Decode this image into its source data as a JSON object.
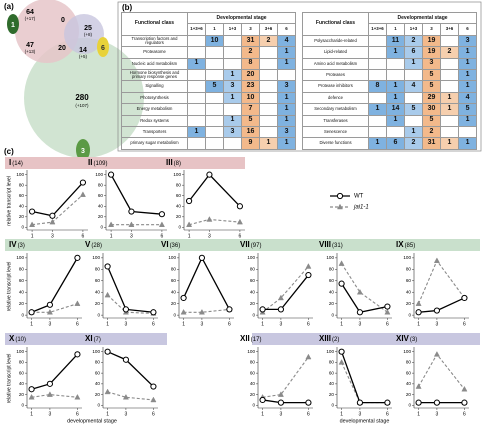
{
  "panel_labels": [
    "(a)",
    "(b)",
    "(c)"
  ],
  "venn": {
    "regions": [
      {
        "count": 64,
        "extra": "(+17)"
      },
      {
        "count": 0
      },
      {
        "count": 25,
        "extra": "(+8)"
      },
      {
        "count": 47,
        "extra": "(+13)"
      },
      {
        "count": 20
      },
      {
        "count": 14,
        "extra": "(+5)"
      },
      {
        "count": 280,
        "extra": "(+107)"
      }
    ],
    "fruit_labels": [
      "1",
      "6",
      "3"
    ]
  },
  "tables": [
    {
      "header_class": "Functional class",
      "header_stage": "Developmental stage",
      "columns": [
        "1+3+6",
        "1",
        "1+3",
        "3",
        "3+6",
        "6"
      ],
      "rows": [
        {
          "class": "Transcription factors and regulators",
          "cells": [
            null,
            10,
            null,
            31,
            2,
            4
          ]
        },
        {
          "class": "Proteasome",
          "cells": [
            null,
            null,
            null,
            2,
            null,
            1
          ]
        },
        {
          "class": "Nucleic acid metabolism",
          "cells": [
            1,
            null,
            null,
            8,
            null,
            1
          ]
        },
        {
          "class": "Hormone biosynthesis and primary response genes",
          "cells": [
            null,
            null,
            1,
            20,
            null,
            null
          ]
        },
        {
          "class": "Signalling",
          "cells": [
            null,
            5,
            3,
            23,
            null,
            3
          ]
        },
        {
          "class": "Photosynthesis",
          "cells": [
            null,
            null,
            1,
            10,
            null,
            1
          ]
        },
        {
          "class": "Energy metabolism",
          "cells": [
            null,
            null,
            null,
            7,
            null,
            1
          ]
        },
        {
          "class": "Redox systems",
          "cells": [
            null,
            null,
            1,
            5,
            null,
            1
          ]
        },
        {
          "class": "Transporters",
          "cells": [
            1,
            null,
            3,
            16,
            null,
            3
          ]
        },
        {
          "class": "primary sugar metabolism",
          "cells": [
            null,
            null,
            null,
            9,
            1,
            1
          ]
        }
      ]
    },
    {
      "header_class": "Functional class",
      "header_stage": "Developmental stage",
      "columns": [
        "1+3+6",
        "1",
        "1+3",
        "3",
        "3+6",
        "6"
      ],
      "rows": [
        {
          "class": "Polysaccharide-related",
          "cells": [
            null,
            11,
            2,
            19,
            null,
            3
          ]
        },
        {
          "class": "Lipid-related",
          "cells": [
            null,
            1,
            6,
            19,
            2,
            1
          ]
        },
        {
          "class": "Amino acid metabolism",
          "cells": [
            null,
            null,
            1,
            3,
            null,
            1
          ]
        },
        {
          "class": "Proteases",
          "cells": [
            null,
            null,
            null,
            5,
            null,
            1
          ]
        },
        {
          "class": "Protease inhibitors",
          "cells": [
            8,
            1,
            4,
            5,
            null,
            1
          ]
        },
        {
          "class": "defence",
          "cells": [
            null,
            1,
            null,
            29,
            1,
            4
          ]
        },
        {
          "class": "Secondary metabolism",
          "cells": [
            1,
            14,
            5,
            30,
            1,
            5
          ]
        },
        {
          "class": "Transferases",
          "cells": [
            null,
            1,
            null,
            5,
            null,
            1
          ]
        },
        {
          "class": "Senescence",
          "cells": [
            null,
            null,
            1,
            2,
            null,
            null
          ]
        },
        {
          "class": "Diverse functions",
          "cells": [
            1,
            6,
            2,
            31,
            1,
            1
          ]
        }
      ]
    }
  ],
  "legend": [
    {
      "name": "WT",
      "color": "#000000",
      "marker": "circle",
      "dashed": false
    },
    {
      "name": "jai1-1",
      "color": "#8a8a8a",
      "marker": "triangle",
      "dashed": true
    }
  ],
  "chart_data": [
    {
      "type": "line",
      "title": "I",
      "count": "(14)",
      "ylabel": "relative transcript level",
      "x": [
        1,
        3,
        6
      ],
      "xlim": [
        0.5,
        6.5
      ],
      "xticks": [
        1,
        3,
        6
      ],
      "ylim": [
        -5,
        105
      ],
      "yticks": [
        0,
        20,
        40,
        60,
        80,
        100
      ],
      "series": [
        {
          "values": [
            30,
            22,
            85
          ]
        },
        {
          "values": [
            5,
            10,
            62
          ]
        }
      ]
    },
    {
      "type": "line",
      "title": "II",
      "count": "(109)",
      "x": [
        1,
        3,
        6
      ],
      "xlim": [
        0.5,
        6.5
      ],
      "xticks": [
        1,
        3,
        6
      ],
      "ylim": [
        -5,
        105
      ],
      "yticks": [
        0,
        20,
        40,
        60,
        80,
        100
      ],
      "series": [
        {
          "values": [
            100,
            30,
            25
          ]
        },
        {
          "values": [
            5,
            5,
            5
          ]
        }
      ]
    },
    {
      "type": "line",
      "title": "III",
      "count": "(8)",
      "x": [
        1,
        3,
        6
      ],
      "xlim": [
        0.5,
        6.5
      ],
      "xticks": [
        1,
        3,
        6
      ],
      "ylim": [
        -5,
        105
      ],
      "yticks": [
        0,
        20,
        40,
        60,
        80,
        100
      ],
      "series": [
        {
          "values": [
            50,
            100,
            40
          ]
        },
        {
          "values": [
            5,
            15,
            10
          ]
        }
      ]
    },
    {
      "type": "line",
      "title": "IV",
      "count": "(3)",
      "ylabel": "relative transcript level",
      "x": [
        1,
        3,
        6
      ],
      "xlim": [
        0.5,
        6.5
      ],
      "xticks": [
        1,
        3,
        6
      ],
      "ylim": [
        -5,
        105
      ],
      "yticks": [
        0,
        20,
        40,
        60,
        80,
        100
      ],
      "series": [
        {
          "values": [
            5,
            18,
            100
          ]
        },
        {
          "values": [
            5,
            5,
            20
          ]
        }
      ]
    },
    {
      "type": "line",
      "title": "V",
      "count": "(28)",
      "x": [
        1,
        3,
        6
      ],
      "xlim": [
        0.5,
        6.5
      ],
      "xticks": [
        1,
        3,
        6
      ],
      "ylim": [
        -5,
        105
      ],
      "yticks": [
        0,
        20,
        40,
        60,
        80,
        100
      ],
      "series": [
        {
          "values": [
            85,
            10,
            5
          ]
        },
        {
          "values": [
            35,
            5,
            3
          ]
        }
      ]
    },
    {
      "type": "line",
      "title": "VI",
      "count": "(36)",
      "x": [
        1,
        3,
        6
      ],
      "xlim": [
        0.5,
        6.5
      ],
      "xticks": [
        1,
        3,
        6
      ],
      "ylim": [
        -5,
        105
      ],
      "yticks": [
        0,
        20,
        40,
        60,
        80,
        100
      ],
      "series": [
        {
          "values": [
            30,
            100,
            10
          ]
        },
        {
          "values": [
            5,
            5,
            10
          ]
        }
      ]
    },
    {
      "type": "line",
      "title": "VII",
      "count": "(97)",
      "x": [
        1,
        3,
        6
      ],
      "xlim": [
        0.5,
        6.5
      ],
      "xticks": [
        1,
        3,
        6
      ],
      "ylim": [
        -5,
        105
      ],
      "yticks": [
        0,
        20,
        40,
        60,
        80,
        100
      ],
      "series": [
        {
          "values": [
            10,
            10,
            70
          ]
        },
        {
          "values": [
            5,
            30,
            85
          ]
        }
      ]
    },
    {
      "type": "line",
      "title": "VIII",
      "count": "(31)",
      "x": [
        1,
        3,
        6
      ],
      "xlim": [
        0.5,
        6.5
      ],
      "xticks": [
        1,
        3,
        6
      ],
      "ylim": [
        -5,
        105
      ],
      "yticks": [
        0,
        20,
        40,
        60,
        80,
        100
      ],
      "series": [
        {
          "values": [
            55,
            5,
            15
          ]
        },
        {
          "values": [
            90,
            40,
            5
          ]
        }
      ]
    },
    {
      "type": "line",
      "title": "IX",
      "count": "(85)",
      "x": [
        1,
        3,
        6
      ],
      "xlim": [
        0.5,
        6.5
      ],
      "xticks": [
        1,
        3,
        6
      ],
      "ylim": [
        -5,
        105
      ],
      "yticks": [
        0,
        20,
        40,
        60,
        80,
        100
      ],
      "series": [
        {
          "values": [
            5,
            8,
            30
          ]
        },
        {
          "values": [
            20,
            95,
            30
          ]
        }
      ]
    },
    {
      "type": "line",
      "title": "X",
      "count": "(10)",
      "ylabel": "relative transcript level",
      "xlabel": "developmental stage",
      "x": [
        1,
        3,
        6
      ],
      "xlim": [
        0.5,
        6.5
      ],
      "xticks": [
        1,
        3,
        6
      ],
      "ylim": [
        -5,
        105
      ],
      "yticks": [
        0,
        20,
        40,
        60,
        80,
        100
      ],
      "series": [
        {
          "values": [
            30,
            40,
            95
          ]
        },
        {
          "values": [
            15,
            20,
            15
          ]
        }
      ]
    },
    {
      "type": "line",
      "title": "XI",
      "count": "(7)",
      "x": [
        1,
        3,
        6
      ],
      "xlim": [
        0.5,
        6.5
      ],
      "xticks": [
        1,
        3,
        6
      ],
      "ylim": [
        -5,
        105
      ],
      "yticks": [
        0,
        20,
        40,
        60,
        80,
        100
      ],
      "series": [
        {
          "values": [
            100,
            85,
            35
          ]
        },
        {
          "values": [
            25,
            15,
            10
          ]
        }
      ]
    },
    {
      "type": "line",
      "title": "XII",
      "count": "(17)",
      "x": [
        1,
        3,
        6
      ],
      "xlim": [
        0.5,
        6.5
      ],
      "xticks": [
        1,
        3,
        6
      ],
      "ylim": [
        -5,
        105
      ],
      "yticks": [
        0,
        20,
        40,
        60,
        80,
        100
      ],
      "series": [
        {
          "values": [
            10,
            5,
            5
          ]
        },
        {
          "values": [
            15,
            20,
            90
          ]
        }
      ]
    },
    {
      "type": "line",
      "title": "XIII",
      "count": "(2)",
      "xlabel": "developmental stage",
      "x": [
        1,
        3,
        6
      ],
      "xlim": [
        0.5,
        6.5
      ],
      "xticks": [
        1,
        3,
        6
      ],
      "ylim": [
        -5,
        105
      ],
      "yticks": [
        0,
        20,
        40,
        60,
        80,
        100
      ],
      "series": [
        {
          "values": [
            100,
            5,
            5
          ]
        },
        {
          "values": [
            80,
            5,
            5
          ]
        }
      ]
    },
    {
      "type": "line",
      "title": "XIV",
      "count": "(3)",
      "x": [
        1,
        3,
        6
      ],
      "xlim": [
        0.5,
        6.5
      ],
      "xticks": [
        1,
        3,
        6
      ],
      "ylim": [
        -5,
        105
      ],
      "yticks": [
        0,
        20,
        40,
        60,
        80,
        100
      ],
      "series": [
        {
          "values": [
            5,
            5,
            5
          ]
        },
        {
          "values": [
            35,
            95,
            30
          ]
        }
      ]
    }
  ]
}
